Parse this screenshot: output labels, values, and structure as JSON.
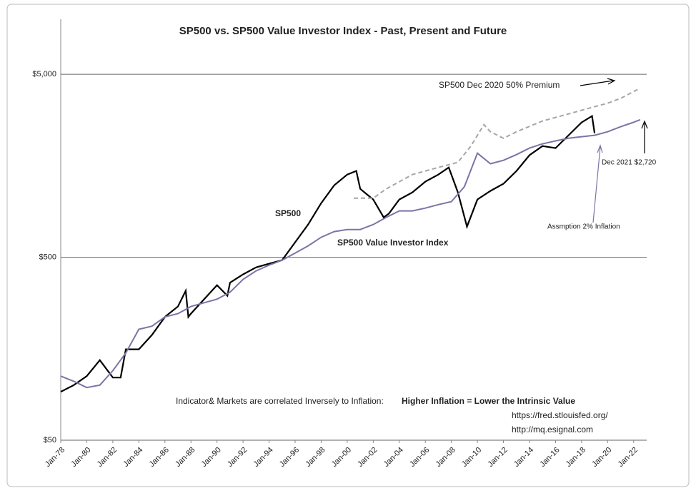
{
  "chart_data": {
    "type": "line",
    "title": "SP500 vs. SP500 Value Investor Index - Past, Present and Future",
    "log_y": true,
    "xlim": [
      1978,
      2023
    ],
    "ylim": [
      50,
      10000
    ],
    "xticks": [
      {
        "value": 1978,
        "label": "Jan-78"
      },
      {
        "value": 1980,
        "label": "Jan-80"
      },
      {
        "value": 1982,
        "label": "Jan-82"
      },
      {
        "value": 1984,
        "label": "Jan-84"
      },
      {
        "value": 1986,
        "label": "Jan-86"
      },
      {
        "value": 1988,
        "label": "Jan-88"
      },
      {
        "value": 1990,
        "label": "Jan-90"
      },
      {
        "value": 1992,
        "label": "Jan-92"
      },
      {
        "value": 1994,
        "label": "Jan-94"
      },
      {
        "value": 1996,
        "label": "Jan-96"
      },
      {
        "value": 1998,
        "label": "Jan-98"
      },
      {
        "value": 2000,
        "label": "Jan-00"
      },
      {
        "value": 2002,
        "label": "Jan-02"
      },
      {
        "value": 2004,
        "label": "Jan-04"
      },
      {
        "value": 2006,
        "label": "Jan-06"
      },
      {
        "value": 2008,
        "label": "Jan-08"
      },
      {
        "value": 2010,
        "label": "Jan-10"
      },
      {
        "value": 2012,
        "label": "Jan-12"
      },
      {
        "value": 2014,
        "label": "Jan-14"
      },
      {
        "value": 2016,
        "label": "Jan-16"
      },
      {
        "value": 2018,
        "label": "Jan-18"
      },
      {
        "value": 2020,
        "label": "Jan-20"
      },
      {
        "value": 2022,
        "label": "Jan-22"
      }
    ],
    "yticks": [
      {
        "value": 50,
        "label": "$50"
      },
      {
        "value": 500,
        "label": "$500"
      },
      {
        "value": 5000,
        "label": "$5,000"
      }
    ],
    "grid": true,
    "series": [
      {
        "name": "SP500",
        "color": "#000000",
        "dashed": false,
        "x": [
          1978,
          1979,
          1980,
          1981,
          1982,
          1982.6,
          1983,
          1984,
          1985,
          1986,
          1987,
          1987.6,
          1987.8,
          1988,
          1989.5,
          1990,
          1990.8,
          1991,
          1992,
          1993,
          1994,
          1995,
          1996,
          1997,
          1998,
          1999,
          2000,
          2000.7,
          2001,
          2002,
          2002.8,
          2003.2,
          2004,
          2005,
          2006,
          2007,
          2007.8,
          2008.5,
          2009.2,
          2010,
          2011,
          2012,
          2013,
          2014,
          2015,
          2016,
          2017,
          2018,
          2018.8,
          2019
        ],
        "values": [
          92,
          100,
          112,
          137,
          110,
          110,
          157,
          157,
          188,
          236,
          269,
          328,
          236,
          246,
          322,
          352,
          308,
          363,
          403,
          440,
          461,
          482,
          604,
          755,
          988,
          1237,
          1416,
          1482,
          1183,
          1035,
          827,
          866,
          1035,
          1131,
          1295,
          1416,
          1549,
          1131,
          735,
          1035,
          1153,
          1262,
          1482,
          1807,
          2028,
          1976,
          2322,
          2729,
          2957,
          2383
        ]
      },
      {
        "name": "SP500 Value Investor Index",
        "color": "#7b74a6",
        "dashed": false,
        "x": [
          1978,
          1979,
          1980,
          1981,
          1982,
          1983,
          1984,
          1985,
          1986,
          1987,
          1988,
          1989,
          1990,
          1991,
          1992,
          1993,
          1994,
          1995,
          1996,
          1997,
          1998,
          1999,
          2000,
          2001,
          2002,
          2003,
          2004,
          2005,
          2006,
          2007,
          2008,
          2009,
          2010,
          2011,
          2012,
          2013,
          2014,
          2015,
          2016,
          2017,
          2018,
          2019,
          2020,
          2021,
          2021.9,
          2022.5
        ],
        "values": [
          112,
          105,
          97,
          100,
          120,
          150,
          202,
          210,
          236,
          246,
          269,
          282,
          295,
          322,
          378,
          421,
          453,
          482,
          527,
          577,
          643,
          691,
          709,
          709,
          755,
          827,
          896,
          896,
          928,
          970,
          1007,
          1216,
          1854,
          1622,
          1694,
          1821,
          1976,
          2085,
          2162,
          2236,
          2280,
          2322,
          2427,
          2585,
          2720,
          2824
        ]
      },
      {
        "name": "SP500  Dec 2020 50% Premium",
        "color": "#a6a6a6",
        "dashed": true,
        "x": [
          2000.5,
          2002,
          2003,
          2005,
          2007,
          2008.5,
          2009.5,
          2010.5,
          2011,
          2012,
          2013,
          2015,
          2017,
          2019,
          2020,
          2021,
          2022.5
        ],
        "values": [
          1053,
          1053,
          1183,
          1416,
          1549,
          1652,
          2028,
          2655,
          2427,
          2236,
          2427,
          2780,
          3040,
          3327,
          3475,
          3698,
          4200
        ]
      }
    ],
    "annotations": [
      {
        "text": "SP500",
        "color": "#000000",
        "bold": true
      },
      {
        "text": "SP500 Value Investor Index",
        "color": "#7b74a6",
        "bold": true
      },
      {
        "text": "Dec 2021 $2,720",
        "color": "#000000",
        "bold": false
      },
      {
        "text": "Assmption 2% Inflation",
        "color": "#7b74a6",
        "bold": false
      },
      {
        "text": "Indicator& Markets are correlated Inversely to Inflation:",
        "color": "#222222",
        "bold": false
      },
      {
        "text": "Higher Inflation = Lower the Intrinsic Value",
        "color": "#000000",
        "bold": true
      },
      {
        "text": "https://fred.stlouisfed.org/",
        "color": "#222222",
        "bold": false
      },
      {
        "text": "http://mq.esignal.com",
        "color": "#222222",
        "bold": false
      }
    ]
  }
}
